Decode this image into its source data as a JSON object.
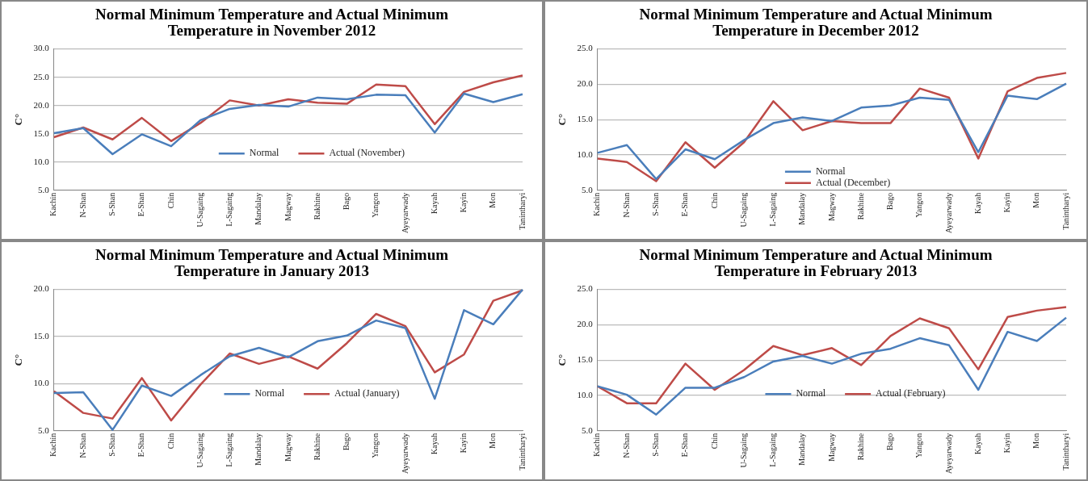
{
  "chart_data": [
    {
      "type": "line",
      "title": "Normal Minimum Temperature and Actual Minimum Temperature  in November 2012",
      "ylabel": "C°",
      "categories": [
        "Kachin",
        "N-Shan",
        "S-Shan",
        "E-Shan",
        "Chin",
        "U-Sagaing",
        "L-Sagaing",
        "Mandalay",
        "Magway",
        "Rakhine",
        "Bago",
        "Yangon",
        "Ayeyarwady",
        "Kayah",
        "Kayin",
        "Mon",
        "Tanintharyi"
      ],
      "series": [
        {
          "name": "Normal",
          "color": "#4a7ebb",
          "values": [
            15.1,
            16.0,
            11.4,
            14.9,
            12.8,
            17.4,
            19.4,
            20.1,
            19.8,
            21.4,
            21.1,
            21.9,
            21.8,
            15.2,
            22.1,
            20.6,
            22.0
          ]
        },
        {
          "name": "Actual (November)",
          "color": "#be4b48",
          "values": [
            14.4,
            16.1,
            14.0,
            17.8,
            13.7,
            16.9,
            20.9,
            20.0,
            21.1,
            20.5,
            20.3,
            23.7,
            23.4,
            16.7,
            22.4,
            24.1,
            25.3
          ]
        }
      ],
      "ylim": [
        5,
        30
      ],
      "yticks": [
        {
          "value": 5,
          "label": "5.0"
        },
        {
          "value": 10,
          "label": "10.0"
        },
        {
          "value": 15,
          "label": "15.0"
        },
        {
          "value": 20,
          "label": "20.0"
        },
        {
          "value": 25,
          "label": "25.0"
        },
        {
          "value": 30,
          "label": "30.0"
        }
      ],
      "grid": "y",
      "legend": "bottom",
      "marker": "none"
    },
    {
      "type": "line",
      "title": "Normal Minimum Temperature and Actual Minimum Temperature in December 2012",
      "ylabel": "C°",
      "categories": [
        "Kachin",
        "N-Shan",
        "S-Shan",
        "E-Shan",
        "Chin",
        "U-Sagaing",
        "L-Sagaing",
        "Mandalay",
        "Magway",
        "Rakhine",
        "Bago",
        "Yangon",
        "Ayeyarwady",
        "Kayah",
        "Kayin",
        "Mon",
        "Tanintharyi"
      ],
      "series": [
        {
          "name": "Normal",
          "color": "#4a7ebb",
          "values": [
            10.3,
            11.4,
            6.6,
            10.8,
            9.4,
            12.1,
            14.5,
            15.3,
            14.8,
            16.7,
            17.0,
            18.1,
            17.8,
            10.4,
            18.4,
            17.9,
            20.1
          ]
        },
        {
          "name": "Actual (December)",
          "color": "#be4b48",
          "values": [
            9.5,
            9.0,
            6.3,
            11.8,
            8.2,
            11.8,
            17.6,
            13.5,
            14.8,
            14.5,
            14.5,
            19.4,
            18.1,
            9.5,
            19.0,
            20.9,
            21.6
          ]
        }
      ],
      "ylim": [
        5,
        25
      ],
      "yticks": [
        {
          "value": 5,
          "label": "5.0"
        },
        {
          "value": 10,
          "label": "10.0"
        },
        {
          "value": 15,
          "label": "15.0"
        },
        {
          "value": 20,
          "label": "20.0"
        },
        {
          "value": 25,
          "label": "25.0"
        }
      ],
      "grid": "y",
      "legend": "bottom left",
      "marker": "none"
    },
    {
      "type": "line",
      "title": "Normal Minimum Temperature and Actual Minimum Temperature in January 2013",
      "ylabel": "C°",
      "categories": [
        "Kachin",
        "N-Shan",
        "S-Shan",
        "E-Shan",
        "Chin",
        "U-Sagaing",
        "L-Sagaing",
        "Mandalay",
        "Magway",
        "Rakhine",
        "Bago",
        "Yangon",
        "Ayeyarwady",
        "Kayah",
        "Kayin",
        "Mon",
        "Tanintharyi"
      ],
      "series": [
        {
          "name": "Normal",
          "color": "#4a7ebb",
          "values": [
            9.0,
            9.1,
            5.1,
            9.8,
            8.7,
            10.9,
            12.9,
            13.8,
            12.8,
            14.5,
            15.1,
            16.7,
            15.9,
            8.4,
            17.8,
            16.3,
            20.0
          ]
        },
        {
          "name": "Actual (January)",
          "color": "#be4b48",
          "values": [
            9.2,
            6.9,
            6.3,
            10.6,
            6.1,
            9.9,
            13.2,
            12.1,
            12.9,
            11.6,
            14.3,
            17.4,
            16.1,
            11.2,
            13.1,
            18.8,
            19.9
          ]
        }
      ],
      "ylim": [
        5,
        20
      ],
      "yticks": [
        {
          "value": 5,
          "label": "5.0"
        },
        {
          "value": 10,
          "label": "10.0"
        },
        {
          "value": 15,
          "label": "15.0"
        },
        {
          "value": 20,
          "label": "20.0"
        }
      ],
      "grid": "y",
      "legend": "bottom",
      "marker": "none"
    },
    {
      "type": "line",
      "title": "Normal Minimum Temperature and Actual Minimum Temperature in February 2013",
      "ylabel": "C°",
      "categories": [
        "Kachin",
        "N-Shan",
        "S-Shan",
        "E-Shan",
        "Chin",
        "U-Sagaing",
        "L-Sagaing",
        "Mandalay",
        "Magway",
        "Rakhine",
        "Bago",
        "Yangon",
        "Ayeyarwady",
        "Kayah",
        "Kayin",
        "Mon",
        "Tanintharyi"
      ],
      "series": [
        {
          "name": "Normal",
          "color": "#4a7ebb",
          "values": [
            11.3,
            10.1,
            7.3,
            11.1,
            11.1,
            12.6,
            14.8,
            15.6,
            14.5,
            15.9,
            16.6,
            18.1,
            17.1,
            10.8,
            19.0,
            17.7,
            21.0
          ]
        },
        {
          "name": "Actual (February)",
          "color": "#be4b48",
          "values": [
            11.3,
            8.9,
            8.9,
            14.5,
            10.8,
            13.6,
            17.0,
            15.7,
            16.7,
            14.3,
            18.4,
            20.9,
            19.5,
            13.7,
            21.1,
            22.0,
            22.5
          ]
        }
      ],
      "ylim": [
        5,
        25
      ],
      "yticks": [
        {
          "value": 5,
          "label": "5.0"
        },
        {
          "value": 10,
          "label": "10.0"
        },
        {
          "value": 15,
          "label": "15.0"
        },
        {
          "value": 20,
          "label": "20.0"
        },
        {
          "value": 25,
          "label": "25.0"
        }
      ],
      "grid": "y",
      "legend": "bottom",
      "marker": "none"
    }
  ]
}
